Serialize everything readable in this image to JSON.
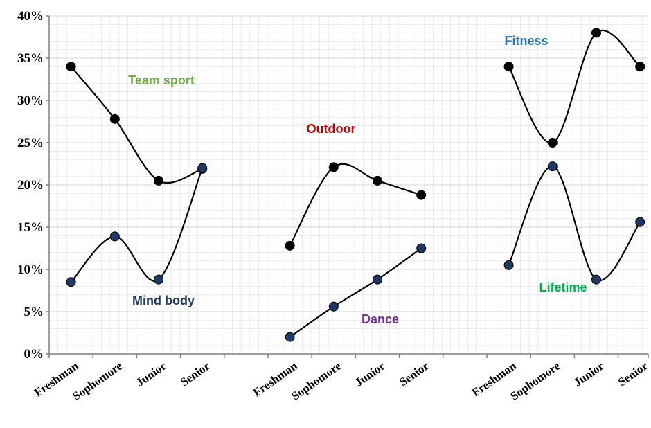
{
  "chart_data": {
    "type": "line",
    "title": "",
    "xlabel": "",
    "ylabel": "",
    "ylim": [
      0,
      40
    ],
    "y_ticks": [
      "0%",
      "5%",
      "10%",
      "15%",
      "20%",
      "25%",
      "30%",
      "35%",
      "40%"
    ],
    "grid": true,
    "groups": [
      {
        "categories": [
          "Freshman",
          "Sophomore",
          "Junior",
          "Senior"
        ],
        "series": [
          {
            "name": "Team sport",
            "values": [
              34,
              27.8,
              20.5,
              21.9
            ],
            "label_color": "#70ad47",
            "marker_color": "#000000"
          },
          {
            "name": "Mind body",
            "values": [
              8.5,
              13.9,
              8.8,
              22
            ],
            "label_color": "#1f3864",
            "marker_color": "#1f3864"
          }
        ]
      },
      {
        "categories": [
          "Freshman",
          "Sophomore",
          "Junior",
          "Senior"
        ],
        "series": [
          {
            "name": "Outdoor",
            "values": [
              12.8,
              22.1,
              20.5,
              18.8
            ],
            "label_color": "#c00000",
            "marker_color": "#000000"
          },
          {
            "name": "Dance",
            "values": [
              2,
              5.6,
              8.8,
              12.5
            ],
            "label_color": "#7030a0",
            "marker_color": "#1f3864"
          }
        ]
      },
      {
        "categories": [
          "Freshman",
          "Sophomore",
          "Junior",
          "Senior"
        ],
        "series": [
          {
            "name": "Fitness",
            "values": [
              34,
              25,
              38,
              34
            ],
            "label_color": "#2e75b6",
            "marker_color": "#000000"
          },
          {
            "name": "Lifetime",
            "values": [
              10.5,
              22.2,
              8.8,
              15.6
            ],
            "label_color": "#00b050",
            "marker_color": "#1f3864"
          }
        ]
      }
    ]
  }
}
